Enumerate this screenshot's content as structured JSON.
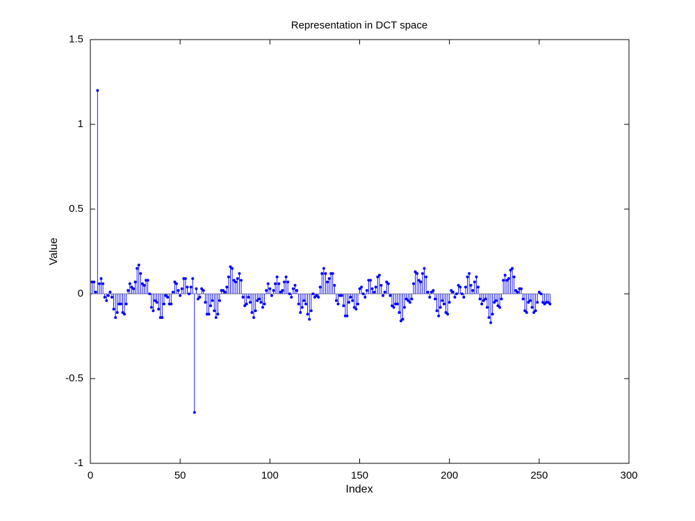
{
  "chart_data": {
    "type": "stem",
    "title": "Representation in DCT space",
    "xlabel": "Index",
    "ylabel": "Value",
    "xlim": [
      0,
      300
    ],
    "ylim": [
      -1,
      1.5
    ],
    "xticks": [
      0,
      50,
      100,
      150,
      200,
      250,
      300
    ],
    "yticks": [
      -1,
      -0.5,
      0,
      0.5,
      1,
      1.5
    ],
    "color": "#0000ff",
    "x": [
      1,
      2,
      3,
      4,
      5,
      6,
      7,
      8,
      9,
      10,
      11,
      12,
      13,
      14,
      15,
      16,
      17,
      18,
      19,
      20,
      21,
      22,
      23,
      24,
      25,
      26,
      27,
      28,
      29,
      30,
      31,
      32,
      33,
      34,
      35,
      36,
      37,
      38,
      39,
      40,
      41,
      42,
      43,
      44,
      45,
      46,
      47,
      48,
      49,
      50,
      51,
      52,
      53,
      54,
      55,
      56,
      57,
      58,
      59,
      60,
      61,
      62,
      63,
      64,
      65,
      66,
      67,
      68,
      69,
      70,
      71,
      72,
      73,
      74,
      75,
      76,
      77,
      78,
      79,
      80,
      81,
      82,
      83,
      84,
      85,
      86,
      87,
      88,
      89,
      90,
      91,
      92,
      93,
      94,
      95,
      96,
      97,
      98,
      99,
      100,
      101,
      102,
      103,
      104,
      105,
      106,
      107,
      108,
      109,
      110,
      111,
      112,
      113,
      114,
      115,
      116,
      117,
      118,
      119,
      120,
      121,
      122,
      123,
      124,
      125,
      126,
      127,
      128,
      129,
      130,
      131,
      132,
      133,
      134,
      135,
      136,
      137,
      138,
      139,
      140,
      141,
      142,
      143,
      144,
      145,
      146,
      147,
      148,
      149,
      150,
      151,
      152,
      153,
      154,
      155,
      156,
      157,
      158,
      159,
      160,
      161,
      162,
      163,
      164,
      165,
      166,
      167,
      168,
      169,
      170,
      171,
      172,
      173,
      174,
      175,
      176,
      177,
      178,
      179,
      180,
      181,
      182,
      183,
      184,
      185,
      186,
      187,
      188,
      189,
      190,
      191,
      192,
      193,
      194,
      195,
      196,
      197,
      198,
      199,
      200,
      201,
      202,
      203,
      204,
      205,
      206,
      207,
      208,
      209,
      210,
      211,
      212,
      213,
      214,
      215,
      216,
      217,
      218,
      219,
      220,
      221,
      222,
      223,
      224,
      225,
      226,
      227,
      228,
      229,
      230,
      231,
      232,
      233,
      234,
      235,
      236,
      237,
      238,
      239,
      240,
      241,
      242,
      243,
      244,
      245,
      246,
      247,
      248,
      249,
      250,
      251,
      252,
      253,
      254,
      255,
      256
    ],
    "values": [
      0.07,
      0.07,
      0.01,
      1.2,
      0.06,
      0.09,
      0.06,
      -0.02,
      -0.04,
      -0.01,
      0.01,
      -0.02,
      -0.09,
      -0.14,
      -0.11,
      -0.06,
      -0.06,
      -0.11,
      -0.12,
      -0.06,
      0.02,
      0.06,
      0.04,
      0.03,
      0.07,
      0.15,
      0.17,
      0.12,
      0.06,
      0.05,
      0.08,
      0.08,
      0.0,
      -0.08,
      -0.1,
      -0.04,
      -0.05,
      -0.09,
      -0.14,
      -0.14,
      -0.06,
      -0.01,
      -0.02,
      -0.06,
      -0.06,
      0.01,
      0.07,
      0.06,
      0.02,
      -0.01,
      0.03,
      0.09,
      0.09,
      0.04,
      0.0,
      0.04,
      0.09,
      -0.7,
      0.03,
      -0.03,
      -0.02,
      0.03,
      0.02,
      -0.05,
      -0.12,
      -0.12,
      -0.07,
      -0.04,
      -0.1,
      -0.14,
      -0.12,
      -0.04,
      0.02,
      0.02,
      0.01,
      0.04,
      0.1,
      0.16,
      0.15,
      0.08,
      0.07,
      0.09,
      0.12,
      0.08,
      -0.02,
      -0.07,
      -0.06,
      -0.02,
      -0.05,
      -0.11,
      -0.14,
      -0.1,
      -0.04,
      -0.03,
      -0.05,
      -0.08,
      -0.06,
      0.02,
      0.06,
      0.03,
      -0.01,
      0.02,
      0.06,
      0.1,
      0.06,
      0.01,
      0.02,
      0.07,
      0.1,
      0.07,
      0.0,
      -0.02,
      0.03,
      0.05,
      0.02,
      -0.06,
      -0.11,
      -0.08,
      -0.04,
      -0.06,
      -0.12,
      -0.15,
      -0.1,
      0.0,
      -0.02,
      -0.01,
      -0.02,
      0.04,
      0.12,
      0.15,
      0.12,
      0.07,
      0.09,
      0.12,
      0.12,
      0.05,
      -0.04,
      -0.06,
      -0.01,
      -0.01,
      -0.07,
      -0.13,
      -0.13,
      -0.05,
      -0.02,
      -0.04,
      -0.08,
      -0.09,
      -0.06,
      0.03,
      0.04,
      0.0,
      -0.02,
      0.02,
      0.08,
      0.08,
      0.03,
      0.01,
      0.04,
      0.1,
      0.11,
      0.05,
      -0.01,
      0.01,
      0.07,
      0.06,
      -0.01,
      -0.07,
      -0.08,
      -0.06,
      -0.06,
      -0.11,
      -0.16,
      -0.15,
      -0.08,
      -0.03,
      -0.04,
      -0.05,
      -0.03,
      0.06,
      0.13,
      0.12,
      0.08,
      0.07,
      0.12,
      0.15,
      0.1,
      0.01,
      -0.02,
      0.01,
      0.02,
      -0.03,
      -0.1,
      -0.13,
      -0.08,
      -0.04,
      -0.06,
      -0.11,
      -0.12,
      -0.05,
      0.02,
      0.01,
      -0.02,
      0.0,
      0.05,
      0.04,
      0.0,
      -0.02,
      0.04,
      0.1,
      0.12,
      0.05,
      0.02,
      0.07,
      0.1,
      0.04,
      -0.03,
      -0.06,
      -0.04,
      -0.03,
      -0.08,
      -0.14,
      -0.17,
      -0.12,
      -0.05,
      -0.04,
      -0.07,
      -0.08,
      -0.03,
      0.08,
      0.11,
      0.08,
      0.09,
      0.14,
      0.15,
      0.1,
      0.02,
      0.01,
      0.03,
      0.03,
      -0.03,
      -0.1,
      -0.11,
      -0.05,
      -0.04,
      -0.08,
      -0.11,
      -0.1,
      -0.05,
      0.01,
      0.0,
      -0.05,
      -0.06,
      -0.05,
      -0.05,
      -0.06
    ]
  }
}
